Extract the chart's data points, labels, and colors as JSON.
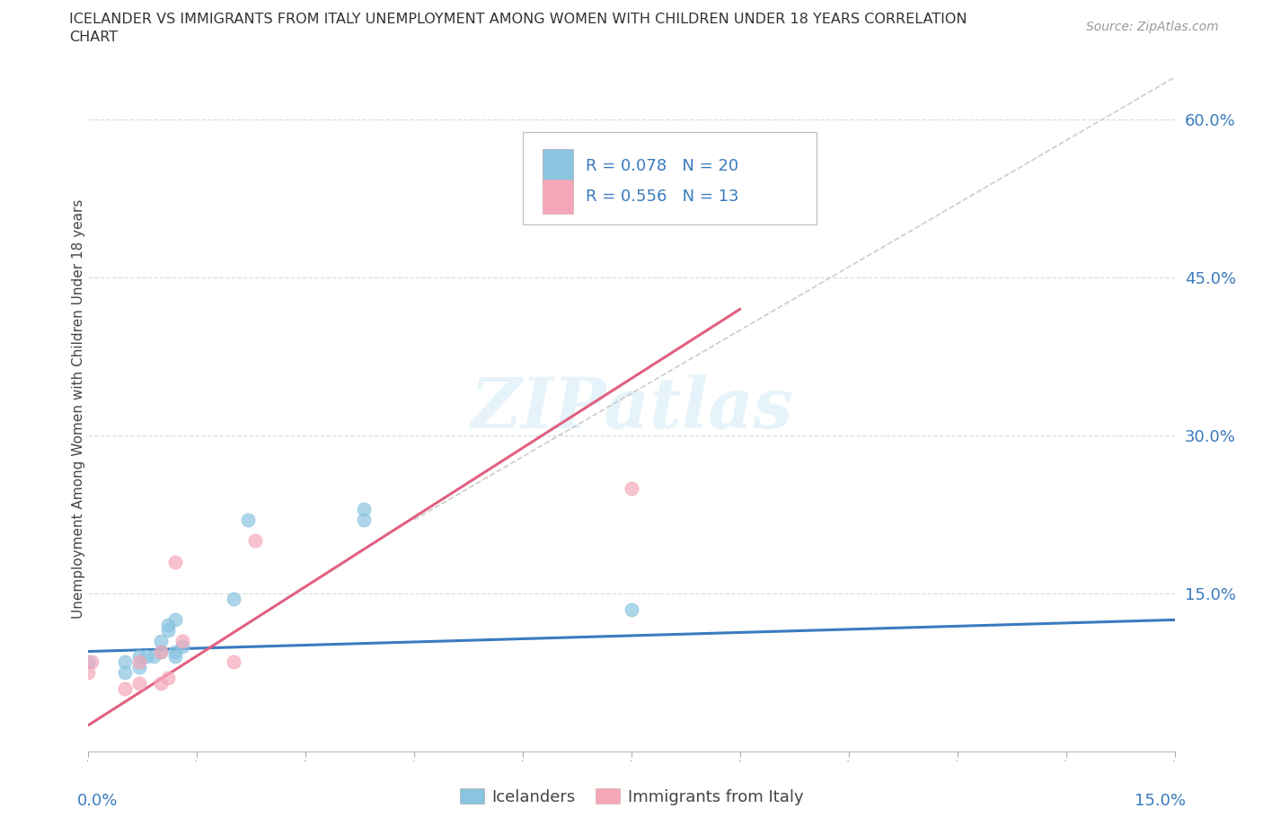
{
  "title_line1": "ICELANDER VS IMMIGRANTS FROM ITALY UNEMPLOYMENT AMONG WOMEN WITH CHILDREN UNDER 18 YEARS CORRELATION",
  "title_line2": "CHART",
  "source": "Source: ZipAtlas.com",
  "ylabel": "Unemployment Among Women with Children Under 18 years",
  "xlabel_bottom_left": "0.0%",
  "xlabel_bottom_right": "15.0%",
  "ytick_labels": [
    "15.0%",
    "30.0%",
    "45.0%",
    "60.0%"
  ],
  "ytick_values": [
    15.0,
    30.0,
    45.0,
    60.0
  ],
  "xlim": [
    0.0,
    15.0
  ],
  "ylim": [
    0.0,
    65.0
  ],
  "watermark": "ZIPatlas",
  "legend_r1": "R = 0.078",
  "legend_n1": "N = 20",
  "legend_r2": "R = 0.556",
  "legend_n2": "N = 13",
  "color_blue": "#89c4e1",
  "color_pink": "#f4a7b9",
  "icelanders_x": [
    0.0,
    0.5,
    0.5,
    0.7,
    0.7,
    0.8,
    0.9,
    1.0,
    1.0,
    1.1,
    1.1,
    1.2,
    1.2,
    1.2,
    1.3,
    2.0,
    2.2,
    3.8,
    3.8,
    7.5
  ],
  "icelanders_y": [
    8.5,
    7.5,
    8.5,
    8.0,
    9.0,
    9.0,
    9.0,
    10.5,
    9.5,
    12.0,
    11.5,
    9.5,
    12.5,
    9.0,
    10.0,
    14.5,
    22.0,
    22.0,
    23.0,
    13.5
  ],
  "italy_x": [
    0.0,
    0.05,
    0.5,
    0.7,
    0.7,
    1.0,
    1.0,
    1.1,
    1.2,
    1.3,
    2.0,
    2.3,
    7.5
  ],
  "italy_y": [
    7.5,
    8.5,
    6.0,
    6.5,
    8.5,
    9.5,
    6.5,
    7.0,
    18.0,
    10.5,
    8.5,
    20.0,
    25.0
  ],
  "trend_blue_x0": 0.0,
  "trend_blue_x1": 15.0,
  "trend_blue_y0": 9.5,
  "trend_blue_y1": 12.5,
  "trend_pink_x0": 0.0,
  "trend_pink_x1": 9.0,
  "trend_pink_y0": 2.5,
  "trend_pink_y1": 42.0,
  "trend_gray_x0": 4.5,
  "trend_gray_x1": 15.0,
  "trend_gray_y0": 22.0,
  "trend_gray_y1": 64.0,
  "legend_label1": "Icelanders",
  "legend_label2": "Immigrants from Italy"
}
